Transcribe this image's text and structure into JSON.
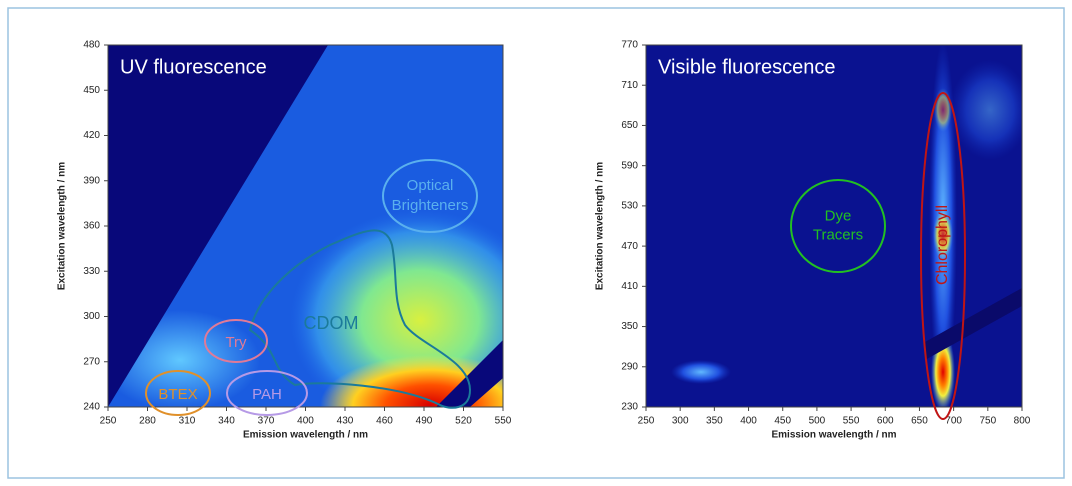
{
  "chart_data": [
    {
      "type": "heatmap",
      "title": "UV fluorescence",
      "xlabel": "Emission wavelength / nm",
      "ylabel": "Excitation wavelength / nm",
      "xlim": [
        250,
        550
      ],
      "xticks": [
        250,
        280,
        310,
        340,
        370,
        400,
        430,
        460,
        490,
        520,
        550
      ],
      "ylim": [
        240,
        480
      ],
      "yticks": [
        240,
        270,
        300,
        330,
        360,
        390,
        420,
        450,
        480
      ],
      "annotations": [
        [
          "Optical",
          "Brighteners"
        ],
        [
          "CDOM"
        ],
        [
          "Try"
        ],
        [
          "BTEX"
        ],
        [
          "PAH"
        ]
      ]
    },
    {
      "type": "heatmap",
      "title": "Visible fluorescence",
      "xlabel": "Emission wavelength / nm",
      "ylabel": "Excitation wavelength / nm",
      "xlim": [
        250,
        800
      ],
      "xticks": [
        250,
        300,
        350,
        400,
        450,
        500,
        550,
        600,
        650,
        700,
        750,
        800
      ],
      "ylim": [
        230,
        770
      ],
      "yticks": [
        230,
        290,
        350,
        410,
        470,
        530,
        590,
        650,
        710,
        770
      ],
      "annotations": [
        [
          "Dye",
          "Tracers"
        ],
        [
          "Chlorophyll"
        ]
      ]
    }
  ]
}
